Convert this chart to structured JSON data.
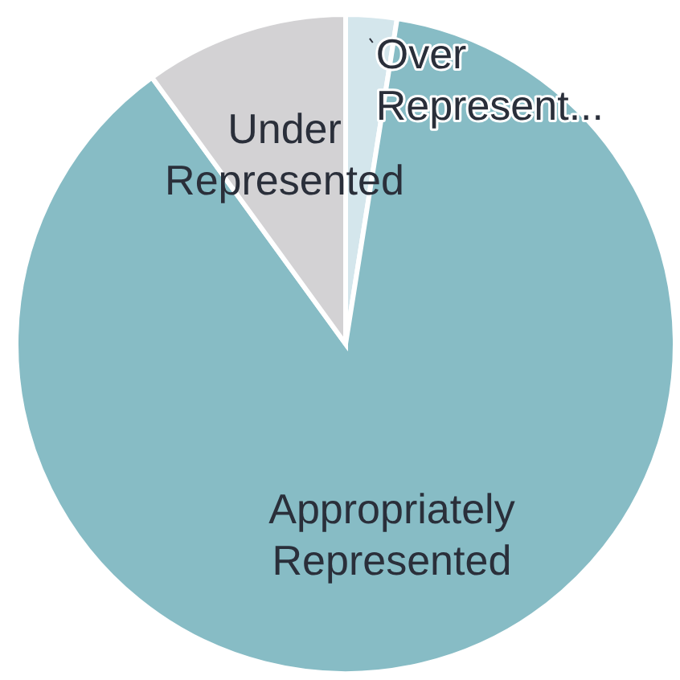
{
  "chart_data": {
    "type": "pie",
    "categories": [
      "Over Represent...",
      "Appropriately Represented",
      "Under Represented"
    ],
    "values": [
      2.5,
      87.5,
      10
    ],
    "colors": [
      "#d4e6ec",
      "#87bcc5",
      "#d3d2d4"
    ]
  }
}
